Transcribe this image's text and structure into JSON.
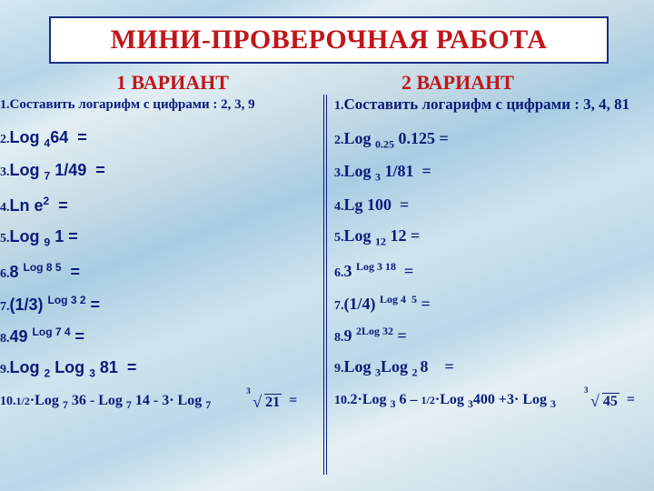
{
  "title": "МИНИ-ПРОВЕРОЧНАЯ РАБОТА",
  "variants": {
    "left": {
      "title": "1 ВАРИАНТ"
    },
    "right": {
      "title": "2 ВАРИАНТ"
    }
  },
  "left_items": [
    {
      "n": "1.",
      "html": "Составить логарифм с цифрами : 2, 3, 9"
    },
    {
      "n": "2.",
      "html": "Log <span class='sub'>4</span>64&nbsp;&nbsp;="
    },
    {
      "n": "3.",
      "html": "Log <span class='sub'>7</span> 1/49&nbsp;&nbsp;="
    },
    {
      "n": "4.",
      "html": "Ln e<span class='sup'>2</span>&nbsp;&nbsp;="
    },
    {
      "n": "5.",
      "html": "Log <span class='sub'>9</span> 1 ="
    },
    {
      "n": "6.",
      "html": "8 <span class='sup'>Log 8 5</span>&nbsp;&nbsp;="
    },
    {
      "n": "7.",
      "html": "(1/3) <span class='sup'>Log 3 2</span> ="
    },
    {
      "n": "8.",
      "html": "49 <span class='sup'>Log 7 4</span> ="
    },
    {
      "n": "9.",
      "html": "Log <span class='sub'>2</span> Log <span class='sub'>3</span> 81&nbsp;&nbsp;="
    },
    {
      "n": "10.",
      "html": "<span class='sml'>1/2</span>·Log <span class='sub'>7</span> 36 - Log <span class='sub'>7</span> 14 - 3· Log <span class='sub'>7</span> <span style='display:inline-block;width:42px'></span><span class='root'><span class='deg'>3</span><span class='surd'>√</span><span class='rad'>21</span></span>&nbsp;&nbsp;="
    }
  ],
  "right_items": [
    {
      "n": "1.",
      "html": "Составить логарифм с цифрами : 3, 4, 81"
    },
    {
      "n": "2.",
      "html": "Log <span class='sub'>0.25</span> 0.125 ="
    },
    {
      "n": "3.",
      "html": "Log <span class='sub'>3</span> 1/81&nbsp;&nbsp;="
    },
    {
      "n": "4.",
      "html": "Lg 100&nbsp;&nbsp;="
    },
    {
      "n": "5.",
      "html": "Log <span class='sub'>12</span> 12 ="
    },
    {
      "n": "6.",
      "html": "3 <span class='sup'>Log 3 18</span>&nbsp;&nbsp;="
    },
    {
      "n": "7.",
      "html": "(1/4) <span class='sup'>Log 4&nbsp;&nbsp;5</span> ="
    },
    {
      "n": "8.",
      "html": "9 <span class='sup'>2Log 32</span> ="
    },
    {
      "n": "9.",
      "html": "Log <span class='sub'>3</span>Log <span class='sub'>2 </span>8&nbsp;&nbsp;&nbsp;&nbsp;="
    },
    {
      "n": "10.",
      "html": "2·Log <span class='sub'>3</span> 6 – <span class='sml'>1/2</span>·Log <span class='sub'>3</span>400 +3· Log <span class='sub'>3</span> <span style='display:inline-block;width:34px'></span><span class='root'><span class='deg'>3</span><span class='surd'>√</span><span class='rad'>45</span></span>&nbsp;&nbsp;="
    }
  ],
  "style": {
    "title_color": "#c0161a",
    "text_color": "#0a1a7a",
    "border_color": "#1a2f85",
    "bg_base": "#cfe4ee"
  }
}
